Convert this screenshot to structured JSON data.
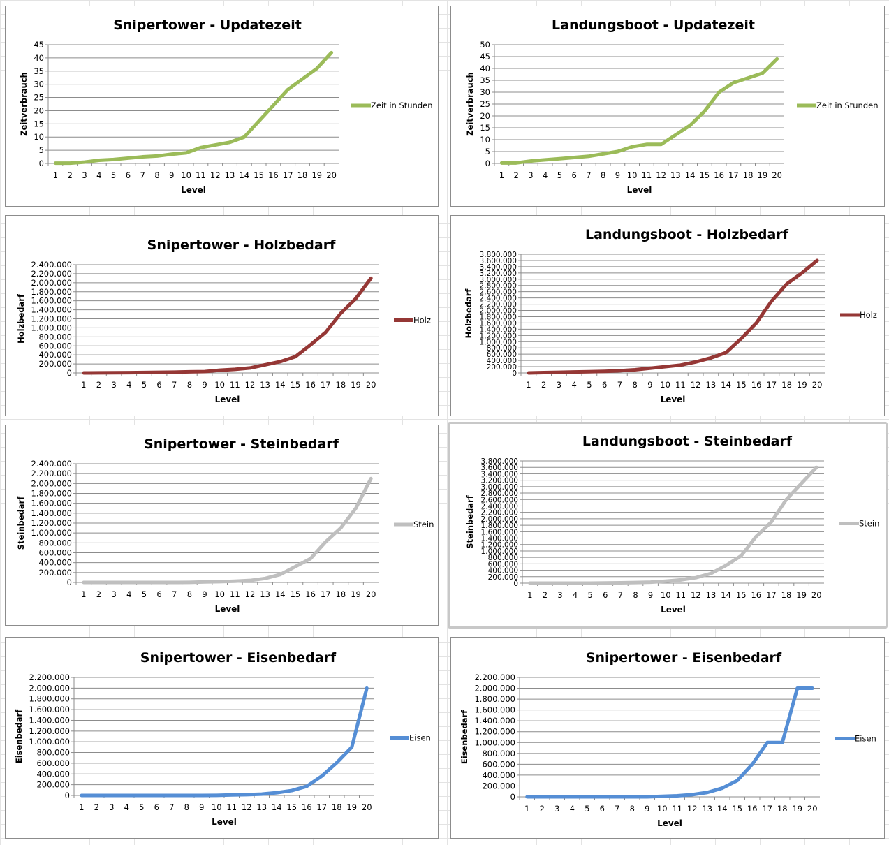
{
  "chart_data": [
    {
      "type": "line",
      "title": "Snipertower - Updatezeit",
      "xlabel": "Level",
      "ylabel": "Zeitverbrauch",
      "series": [
        {
          "name": "Zeit in Stunden",
          "color": "#9bbb59",
          "values": [
            0.1,
            0.1,
            0.5,
            1.2,
            1.5,
            2,
            2.5,
            2.8,
            3.5,
            4,
            6,
            7,
            8,
            10,
            16,
            22,
            28,
            32,
            36,
            42
          ]
        }
      ],
      "ylim": [
        0,
        45
      ],
      "ystep": 5,
      "yticks": [
        "0",
        "5",
        "10",
        "15",
        "20",
        "25",
        "30",
        "35",
        "40",
        "45"
      ],
      "grid": true,
      "legend": "right"
    },
    {
      "type": "line",
      "title": "Landungsboot - Updatezeit",
      "xlabel": "Level",
      "ylabel": "Zeitverbrauch",
      "series": [
        {
          "name": "Zeit in Stunden",
          "color": "#9bbb59",
          "values": [
            0.2,
            0.2,
            1,
            1.5,
            2,
            2.5,
            3,
            4,
            5,
            7,
            8,
            8,
            12,
            16,
            22,
            30,
            34,
            36,
            38,
            44
          ]
        }
      ],
      "ylim": [
        0,
        50
      ],
      "ystep": 5,
      "yticks": [
        "0",
        "5",
        "10",
        "15",
        "20",
        "25",
        "30",
        "35",
        "40",
        "45",
        "50"
      ],
      "grid": true,
      "legend": "right"
    },
    {
      "type": "line",
      "title": "Snipertower - Holzbedarf",
      "xlabel": "Level",
      "ylabel": "Holzbedarf",
      "series": [
        {
          "name": "Holz",
          "color": "#953735",
          "values": [
            0,
            2000,
            4000,
            6000,
            10000,
            14000,
            18000,
            25000,
            30000,
            60000,
            80000,
            110000,
            180000,
            250000,
            360000,
            620000,
            900000,
            1320000,
            1650000,
            2100000
          ]
        }
      ],
      "ylim": [
        0,
        2400000
      ],
      "ystep": 200000,
      "yticks": [
        "0",
        "200.000",
        "400.000",
        "600.000",
        "800.000",
        "1.000.000",
        "1.200.000",
        "1.400.000",
        "1.600.000",
        "1.800.000",
        "2.000.000",
        "2.200.000",
        "2.400.000"
      ],
      "grid": true,
      "legend": "right"
    },
    {
      "type": "line",
      "title": "Landungsboot - Holzbedarf",
      "xlabel": "Level",
      "ylabel": "Holzbedarf",
      "series": [
        {
          "name": "Holz",
          "color": "#953735",
          "values": [
            0,
            10000,
            20000,
            30000,
            40000,
            50000,
            70000,
            100000,
            150000,
            200000,
            250000,
            350000,
            480000,
            650000,
            1100000,
            1600000,
            2300000,
            2850000,
            3200000,
            3600000
          ]
        }
      ],
      "ylim": [
        0,
        3800000
      ],
      "ystep": 200000,
      "yticks": [
        "0",
        "200.000",
        "400.000",
        "600.000",
        "800.000",
        "1.000.000",
        "1.200.000",
        "1.400.000",
        "1.600.000",
        "1.800.000",
        "2.000.000",
        "2.200.000",
        "2.400.000",
        "2.600.000",
        "2.800.000",
        "3.000.000",
        "3.200.000",
        "3.400.000",
        "3.600.000",
        "3.800.000"
      ],
      "grid": true,
      "legend": "right"
    },
    {
      "type": "line",
      "title": "Snipertower - Steinbedarf",
      "xlabel": "Level",
      "ylabel": "Steinbedarf",
      "series": [
        {
          "name": "Stein",
          "color": "#bfbfbf",
          "values": [
            0,
            0,
            0,
            0,
            0,
            0,
            0,
            2000,
            10000,
            15000,
            25000,
            40000,
            80000,
            160000,
            320000,
            480000,
            820000,
            1100000,
            1500000,
            2100000
          ]
        }
      ],
      "ylim": [
        0,
        2400000
      ],
      "ystep": 200000,
      "yticks": [
        "0",
        "200.000",
        "400.000",
        "600.000",
        "800.000",
        "1.000.000",
        "1.200.000",
        "1.400.000",
        "1.600.000",
        "1.800.000",
        "2.000.000",
        "2.200.000",
        "2.400.000"
      ],
      "grid": true,
      "legend": "right"
    },
    {
      "type": "line",
      "title": "Landungsboot - Steinbedarf",
      "xlabel": "Level",
      "ylabel": "Steinbedarf",
      "series": [
        {
          "name": "Stein",
          "color": "#bfbfbf",
          "values": [
            0,
            0,
            0,
            0,
            0,
            5000,
            10000,
            20000,
            30000,
            60000,
            100000,
            170000,
            300000,
            550000,
            850000,
            1450000,
            1900000,
            2600000,
            3100000,
            3600000
          ]
        }
      ],
      "ylim": [
        0,
        3800000
      ],
      "ystep": 200000,
      "yticks": [
        "0",
        "200.000",
        "400.000",
        "600.000",
        "800.000",
        "1.000.000",
        "1.200.000",
        "1.400.000",
        "1.600.000",
        "1.800.000",
        "2.000.000",
        "2.200.000",
        "2.400.000",
        "2.600.000",
        "2.800.000",
        "3.000.000",
        "3.200.000",
        "3.400.000",
        "3.600.000",
        "3.800.000"
      ],
      "grid": true,
      "legend": "right"
    },
    {
      "type": "line",
      "title": "Snipertower - Eisenbedarf",
      "xlabel": "Level",
      "ylabel": "Eisenbedarf",
      "series": [
        {
          "name": "Eisen",
          "color": "#558ed5",
          "values": [
            0,
            0,
            0,
            0,
            0,
            0,
            0,
            0,
            0,
            2000,
            10000,
            15000,
            25000,
            50000,
            90000,
            170000,
            360000,
            610000,
            900000,
            2000000
          ]
        }
      ],
      "ylim": [
        0,
        2200000
      ],
      "ystep": 200000,
      "yticks": [
        "0",
        "200.000",
        "400.000",
        "600.000",
        "800.000",
        "1.000.000",
        "1.200.000",
        "1.400.000",
        "1.600.000",
        "1.800.000",
        "2.000.000",
        "2.200.000"
      ],
      "grid": true,
      "legend": "right"
    },
    {
      "type": "line",
      "title": "Snipertower - Eisenbedarf",
      "xlabel": "Level",
      "ylabel": "Eisenbedarf",
      "series": [
        {
          "name": "Eisen",
          "color": "#558ed5",
          "values": [
            0,
            0,
            0,
            0,
            0,
            0,
            0,
            0,
            0,
            10000,
            20000,
            40000,
            80000,
            160000,
            300000,
            600000,
            1000000,
            1000000,
            2000000,
            2000000
          ]
        }
      ],
      "ylim": [
        0,
        2200000
      ],
      "ystep": 200000,
      "yticks": [
        "0",
        "200.000",
        "400.000",
        "600.000",
        "800.000",
        "1.000.000",
        "1.200.000",
        "1.400.000",
        "1.600.000",
        "1.800.000",
        "2.000.000",
        "2.200.000"
      ],
      "grid": true,
      "legend": "right"
    }
  ],
  "x_categories": [
    "1",
    "2",
    "3",
    "4",
    "5",
    "6",
    "7",
    "8",
    "9",
    "10",
    "11",
    "12",
    "13",
    "14",
    "15",
    "16",
    "17",
    "18",
    "19",
    "20"
  ]
}
